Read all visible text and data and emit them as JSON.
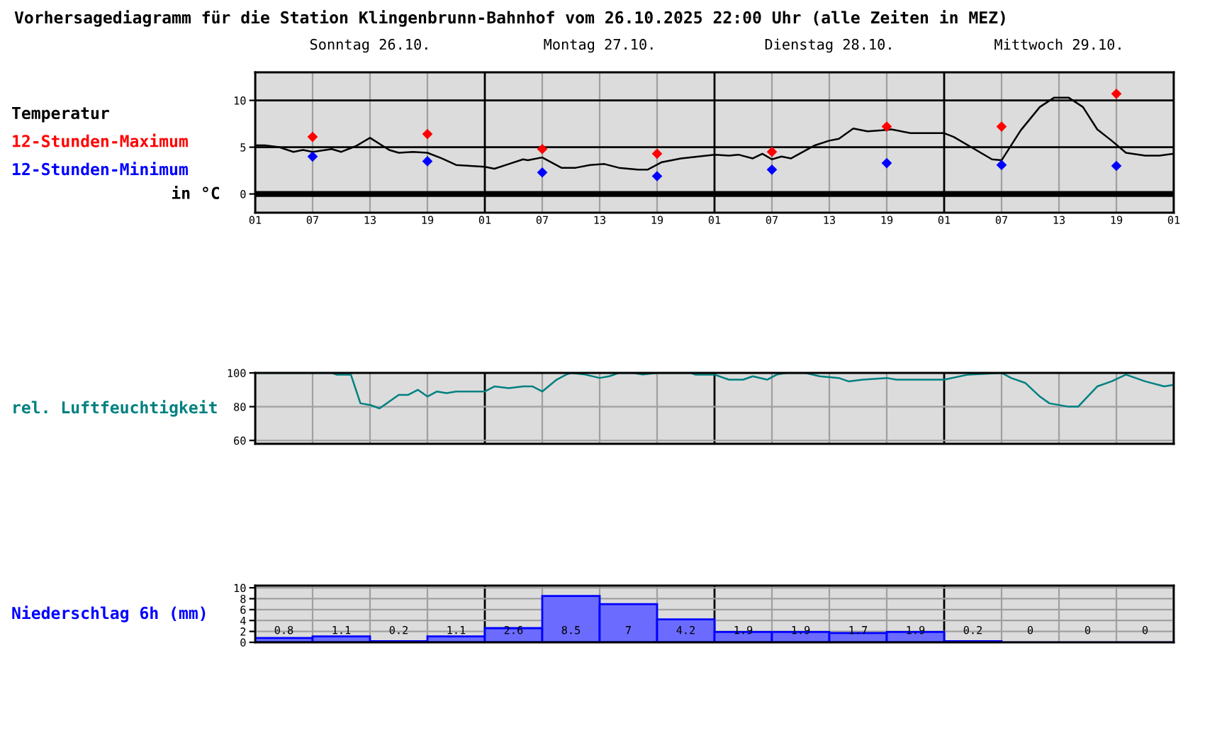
{
  "chart_data": [
    {
      "type": "line",
      "title": "Vorhersagediagramm für die Station Klingenbrunn-Bahnhof vom 26.10.2025 22:00 Uhr (alle Zeiten in MEZ)",
      "xlim": [
        "2025-10-26T01:00",
        "2025-10-30T01:00"
      ],
      "xticks": [
        {
          "value": "2025-10-26T01:00",
          "label": "01"
        },
        {
          "value": "2025-10-26T07:00",
          "label": "07"
        },
        {
          "value": "2025-10-26T13:00",
          "label": "13"
        },
        {
          "value": "2025-10-26T19:00",
          "label": "19"
        },
        {
          "value": "2025-10-27T01:00",
          "label": "01"
        },
        {
          "value": "2025-10-27T07:00",
          "label": "07"
        },
        {
          "value": "2025-10-27T13:00",
          "label": "13"
        },
        {
          "value": "2025-10-27T19:00",
          "label": "19"
        },
        {
          "value": "2025-10-28T01:00",
          "label": "01"
        },
        {
          "value": "2025-10-28T07:00",
          "label": "07"
        },
        {
          "value": "2025-10-28T13:00",
          "label": "13"
        },
        {
          "value": "2025-10-28T19:00",
          "label": "19"
        },
        {
          "value": "2025-10-29T01:00",
          "label": "01"
        },
        {
          "value": "2025-10-29T07:00",
          "label": "07"
        },
        {
          "value": "2025-10-29T13:00",
          "label": "13"
        },
        {
          "value": "2025-10-29T19:00",
          "label": "19"
        },
        {
          "value": "2025-10-30T01:00",
          "label": "01"
        }
      ],
      "x2lim": [
        "2025-10-26T01:00",
        "2025-10-30T01:00"
      ],
      "x2ticks": [
        {
          "value": "2025-10-26T13:00",
          "label": "Sonntag 26.10."
        },
        {
          "value": "2025-10-27T13:00",
          "label": "Montag 27.10."
        },
        {
          "value": "2025-10-28T13:00",
          "label": "Dienstag 28.10."
        },
        {
          "value": "2025-10-29T13:00",
          "label": "Mittwoch 29.10."
        }
      ],
      "ylim": [
        -2,
        13
      ],
      "yticks": [
        0,
        5,
        10
      ],
      "ylabel": "in °C",
      "grid": "x",
      "legend": "left",
      "ref_lines": [
        {
          "axis": "y",
          "value": 0,
          "color": "#000000"
        },
        {
          "axis": "y",
          "value": 5,
          "color": "#000000"
        },
        {
          "axis": "y",
          "value": 10,
          "color": "#000000"
        }
      ],
      "series": [
        {
          "name": "Temperatur",
          "color": "#000000",
          "type": "line",
          "x": [
            "2025-10-26T01:00",
            "2025-10-26T02:00",
            "2025-10-26T03:30",
            "2025-10-26T05:00",
            "2025-10-26T06:00",
            "2025-10-26T07:00",
            "2025-10-26T09:00",
            "2025-10-26T10:00",
            "2025-10-26T11:30",
            "2025-10-26T13:00",
            "2025-10-26T15:00",
            "2025-10-26T16:00",
            "2025-10-26T17:30",
            "2025-10-26T19:00",
            "2025-10-26T20:30",
            "2025-10-26T22:00",
            "2025-10-26T23:30",
            "2025-10-27T01:00",
            "2025-10-27T02:00",
            "2025-10-27T03:30",
            "2025-10-27T05:00",
            "2025-10-27T05:30",
            "2025-10-27T07:00",
            "2025-10-27T09:00",
            "2025-10-27T10:30",
            "2025-10-27T12:00",
            "2025-10-27T13:30",
            "2025-10-27T15:00",
            "2025-10-27T17:00",
            "2025-10-27T18:00",
            "2025-10-27T19:30",
            "2025-10-27T21:30",
            "2025-10-28T01:00",
            "2025-10-28T02:30",
            "2025-10-28T03:30",
            "2025-10-28T05:00",
            "2025-10-28T06:00",
            "2025-10-28T07:00",
            "2025-10-28T08:00",
            "2025-10-28T09:00",
            "2025-10-28T11:30",
            "2025-10-28T13:00",
            "2025-10-28T14:00",
            "2025-10-28T15:30",
            "2025-10-28T17:00",
            "2025-10-28T18:30",
            "2025-10-28T19:30",
            "2025-10-28T21:30",
            "2025-10-29T01:00",
            "2025-10-29T02:00",
            "2025-10-29T06:00",
            "2025-10-29T07:00",
            "2025-10-29T09:00",
            "2025-10-29T11:00",
            "2025-10-29T12:30",
            "2025-10-29T14:00",
            "2025-10-29T15:30",
            "2025-10-29T17:00",
            "2025-10-29T18:30",
            "2025-10-29T20:00",
            "2025-10-29T22:00",
            "2025-10-29T23:30",
            "2025-10-30T01:00"
          ],
          "values": [
            5.2,
            5.2,
            5.0,
            4.5,
            4.7,
            4.5,
            4.8,
            4.5,
            5.1,
            6.0,
            4.7,
            4.4,
            4.5,
            4.4,
            3.8,
            3.1,
            3.0,
            2.9,
            2.7,
            3.2,
            3.7,
            3.6,
            3.9,
            2.8,
            2.8,
            3.1,
            3.2,
            2.8,
            2.6,
            2.6,
            3.4,
            3.8,
            4.2,
            4.1,
            4.2,
            3.8,
            4.3,
            3.7,
            4.0,
            3.8,
            5.2,
            5.7,
            5.9,
            7.0,
            6.7,
            6.8,
            6.9,
            6.5,
            6.5,
            6.1,
            3.7,
            3.6,
            6.8,
            9.3,
            10.3,
            10.3,
            9.3,
            6.9,
            5.7,
            4.4,
            4.1,
            4.1,
            4.3
          ]
        },
        {
          "name": "12-Stunden-Maximum",
          "color": "#ff0000",
          "type": "scatter",
          "marker": "diamond",
          "x": [
            "2025-10-26T07:00",
            "2025-10-26T19:00",
            "2025-10-27T07:00",
            "2025-10-27T19:00",
            "2025-10-28T07:00",
            "2025-10-28T19:00",
            "2025-10-29T07:00",
            "2025-10-29T19:00"
          ],
          "values": [
            6.1,
            6.4,
            4.8,
            4.3,
            4.5,
            7.2,
            7.2,
            10.7
          ]
        },
        {
          "name": "12-Stunden-Minimum",
          "color": "#0000ff",
          "type": "scatter",
          "marker": "diamond",
          "x": [
            "2025-10-26T07:00",
            "2025-10-26T19:00",
            "2025-10-27T07:00",
            "2025-10-27T19:00",
            "2025-10-28T07:00",
            "2025-10-28T19:00",
            "2025-10-29T07:00",
            "2025-10-29T19:00"
          ],
          "values": [
            4.0,
            3.5,
            2.3,
            1.9,
            2.6,
            3.3,
            3.1,
            3.0
          ]
        }
      ]
    },
    {
      "type": "line",
      "tick_labels": "y",
      "xlim": [
        "2025-10-26T01:00",
        "2025-10-30T01:00"
      ],
      "xticks": [
        {
          "value": "2025-10-26T01:00",
          "label": null
        },
        {
          "value": "2025-10-26T07:00",
          "label": null
        },
        {
          "value": "2025-10-26T13:00",
          "label": null
        },
        {
          "value": "2025-10-26T19:00",
          "label": null
        },
        {
          "value": "2025-10-27T01:00",
          "label": null
        },
        {
          "value": "2025-10-27T07:00",
          "label": null
        },
        {
          "value": "2025-10-27T13:00",
          "label": null
        },
        {
          "value": "2025-10-27T19:00",
          "label": null
        },
        {
          "value": "2025-10-28T01:00",
          "label": null
        },
        {
          "value": "2025-10-28T07:00",
          "label": null
        },
        {
          "value": "2025-10-28T13:00",
          "label": null
        },
        {
          "value": "2025-10-28T19:00",
          "label": null
        },
        {
          "value": "2025-10-29T01:00",
          "label": null
        },
        {
          "value": "2025-10-29T07:00",
          "label": null
        },
        {
          "value": "2025-10-29T13:00",
          "label": null
        },
        {
          "value": "2025-10-29T19:00",
          "label": null
        },
        {
          "value": "2025-10-30T01:00",
          "label": null
        }
      ],
      "ylim": [
        58,
        100
      ],
      "yticks": [
        60,
        80,
        100
      ],
      "grid": true,
      "legend": "left",
      "series": [
        {
          "name": "rel. Luftfeuchtigkeit",
          "color": "#008080",
          "x": [
            "2025-10-26T01:00",
            "2025-10-26T09:00",
            "2025-10-26T09:30",
            "2025-10-26T11:00",
            "2025-10-26T12:00",
            "2025-10-26T13:00",
            "2025-10-26T14:00",
            "2025-10-26T16:00",
            "2025-10-26T17:00",
            "2025-10-26T18:00",
            "2025-10-26T19:00",
            "2025-10-26T20:00",
            "2025-10-26T21:00",
            "2025-10-26T22:00",
            "2025-10-27T01:00",
            "2025-10-27T02:00",
            "2025-10-27T03:30",
            "2025-10-27T05:00",
            "2025-10-27T06:00",
            "2025-10-27T07:00",
            "2025-10-27T08:30",
            "2025-10-27T09:30",
            "2025-10-27T10:00",
            "2025-10-27T11:30",
            "2025-10-27T13:00",
            "2025-10-27T14:00",
            "2025-10-27T15:00",
            "2025-10-27T16:30",
            "2025-10-27T17:30",
            "2025-10-27T19:00",
            "2025-10-27T22:30",
            "2025-10-27T23:00",
            "2025-10-28T01:00",
            "2025-10-28T02:30",
            "2025-10-28T04:00",
            "2025-10-28T05:00",
            "2025-10-28T06:30",
            "2025-10-28T07:30",
            "2025-10-28T08:30",
            "2025-10-28T10:30",
            "2025-10-28T12:00",
            "2025-10-28T14:00",
            "2025-10-28T15:00",
            "2025-10-28T16:30",
            "2025-10-28T19:00",
            "2025-10-28T20:00",
            "2025-10-28T23:00",
            "2025-10-29T01:00",
            "2025-10-29T03:30",
            "2025-10-29T07:00",
            "2025-10-29T08:00",
            "2025-10-29T09:30",
            "2025-10-29T11:00",
            "2025-10-29T12:00",
            "2025-10-29T14:00",
            "2025-10-29T15:00",
            "2025-10-29T17:00",
            "2025-10-29T18:30",
            "2025-10-29T20:00",
            "2025-10-29T22:00",
            "2025-10-30T00:00",
            "2025-10-30T01:00"
          ],
          "values": [
            100,
            100,
            99,
            99,
            82,
            81,
            79,
            87,
            87,
            90,
            86,
            89,
            88,
            89,
            89,
            92,
            91,
            92,
            92,
            89,
            96,
            99,
            100,
            99,
            97,
            98,
            100,
            100,
            99,
            100,
            100,
            99,
            99,
            96,
            96,
            98,
            96,
            99,
            100,
            100,
            98,
            97,
            95,
            96,
            97,
            96,
            96,
            96,
            99,
            100,
            97,
            94,
            86,
            82,
            80,
            80,
            92,
            95,
            99,
            95,
            92,
            93
          ]
        }
      ]
    },
    {
      "type": "bar",
      "tick_labels": "y",
      "data_labels": true,
      "xlim": [
        "2025-10-26T01:00",
        "2025-10-30T01:00"
      ],
      "xticks": [
        {
          "value": "2025-10-26T01:00",
          "label": null
        },
        {
          "value": "2025-10-26T07:00",
          "label": null
        },
        {
          "value": "2025-10-26T13:00",
          "label": null
        },
        {
          "value": "2025-10-26T19:00",
          "label": null
        },
        {
          "value": "2025-10-27T01:00",
          "label": null
        },
        {
          "value": "2025-10-27T07:00",
          "label": null
        },
        {
          "value": "2025-10-27T13:00",
          "label": null
        },
        {
          "value": "2025-10-27T19:00",
          "label": null
        },
        {
          "value": "2025-10-28T01:00",
          "label": null
        },
        {
          "value": "2025-10-28T07:00",
          "label": null
        },
        {
          "value": "2025-10-28T13:00",
          "label": null
        },
        {
          "value": "2025-10-28T19:00",
          "label": null
        },
        {
          "value": "2025-10-29T01:00",
          "label": null
        },
        {
          "value": "2025-10-29T07:00",
          "label": null
        },
        {
          "value": "2025-10-29T13:00",
          "label": null
        },
        {
          "value": "2025-10-29T19:00",
          "label": null
        },
        {
          "value": "2025-10-30T01:00",
          "label": null
        }
      ],
      "ylim": [
        0,
        10.4
      ],
      "yticks": [
        0,
        2,
        4,
        6,
        8,
        10
      ],
      "grid": true,
      "legend": "left",
      "series": [
        {
          "name": "Niederschlag 6h (mm)",
          "color": "#6b6bff",
          "x": [
            "2025-10-26T04:00",
            "2025-10-26T10:00",
            "2025-10-26T16:00",
            "2025-10-26T22:00",
            "2025-10-27T04:00",
            "2025-10-27T10:00",
            "2025-10-27T16:00",
            "2025-10-27T22:00",
            "2025-10-28T04:00",
            "2025-10-28T10:00",
            "2025-10-28T16:00",
            "2025-10-28T22:00",
            "2025-10-29T04:00",
            "2025-10-29T10:00",
            "2025-10-29T16:00",
            "2025-10-29T22:00"
          ],
          "values": [
            0.8,
            1.1,
            0.2,
            1.1,
            2.6,
            8.5,
            7,
            4.2,
            1.9,
            1.9,
            1.7,
            1.9,
            0.2,
            0,
            0,
            0
          ]
        }
      ]
    }
  ]
}
